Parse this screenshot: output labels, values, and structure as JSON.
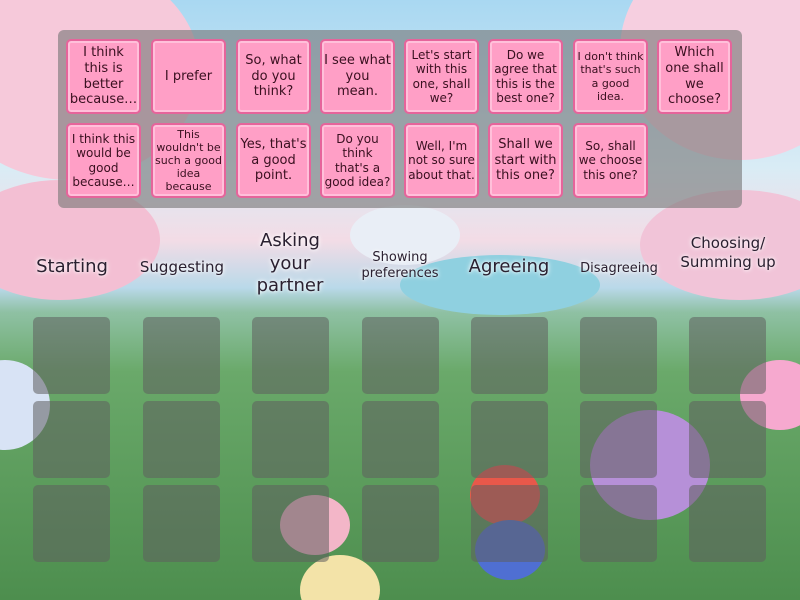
{
  "cards": [
    "I think this is better because…",
    "I prefer",
    "So, what do you think?",
    "I see what you mean.",
    "Let's start with this one, shall we?",
    "Do we agree that this is the best one?",
    "I don't think that's such a good idea.",
    "Which one shall we choose?",
    "I think this would be good because…",
    "This wouldn't be such a good idea because",
    "Yes, that's a good point.",
    "Do you think that's a good idea?",
    "Well, I'm not so sure about that.",
    "Shall we start with this one?",
    "So, shall we choose this one?"
  ],
  "categories": [
    "Starting",
    "Suggesting",
    "Asking your partner",
    "Showing preferences",
    "Agreeing",
    "Disagreeing",
    "Choosing/ Summing up"
  ],
  "colors": {
    "card": "#ff9fc6",
    "card_border": "#e6649b",
    "tray": "#787878",
    "slot": "#5f5f5f"
  }
}
